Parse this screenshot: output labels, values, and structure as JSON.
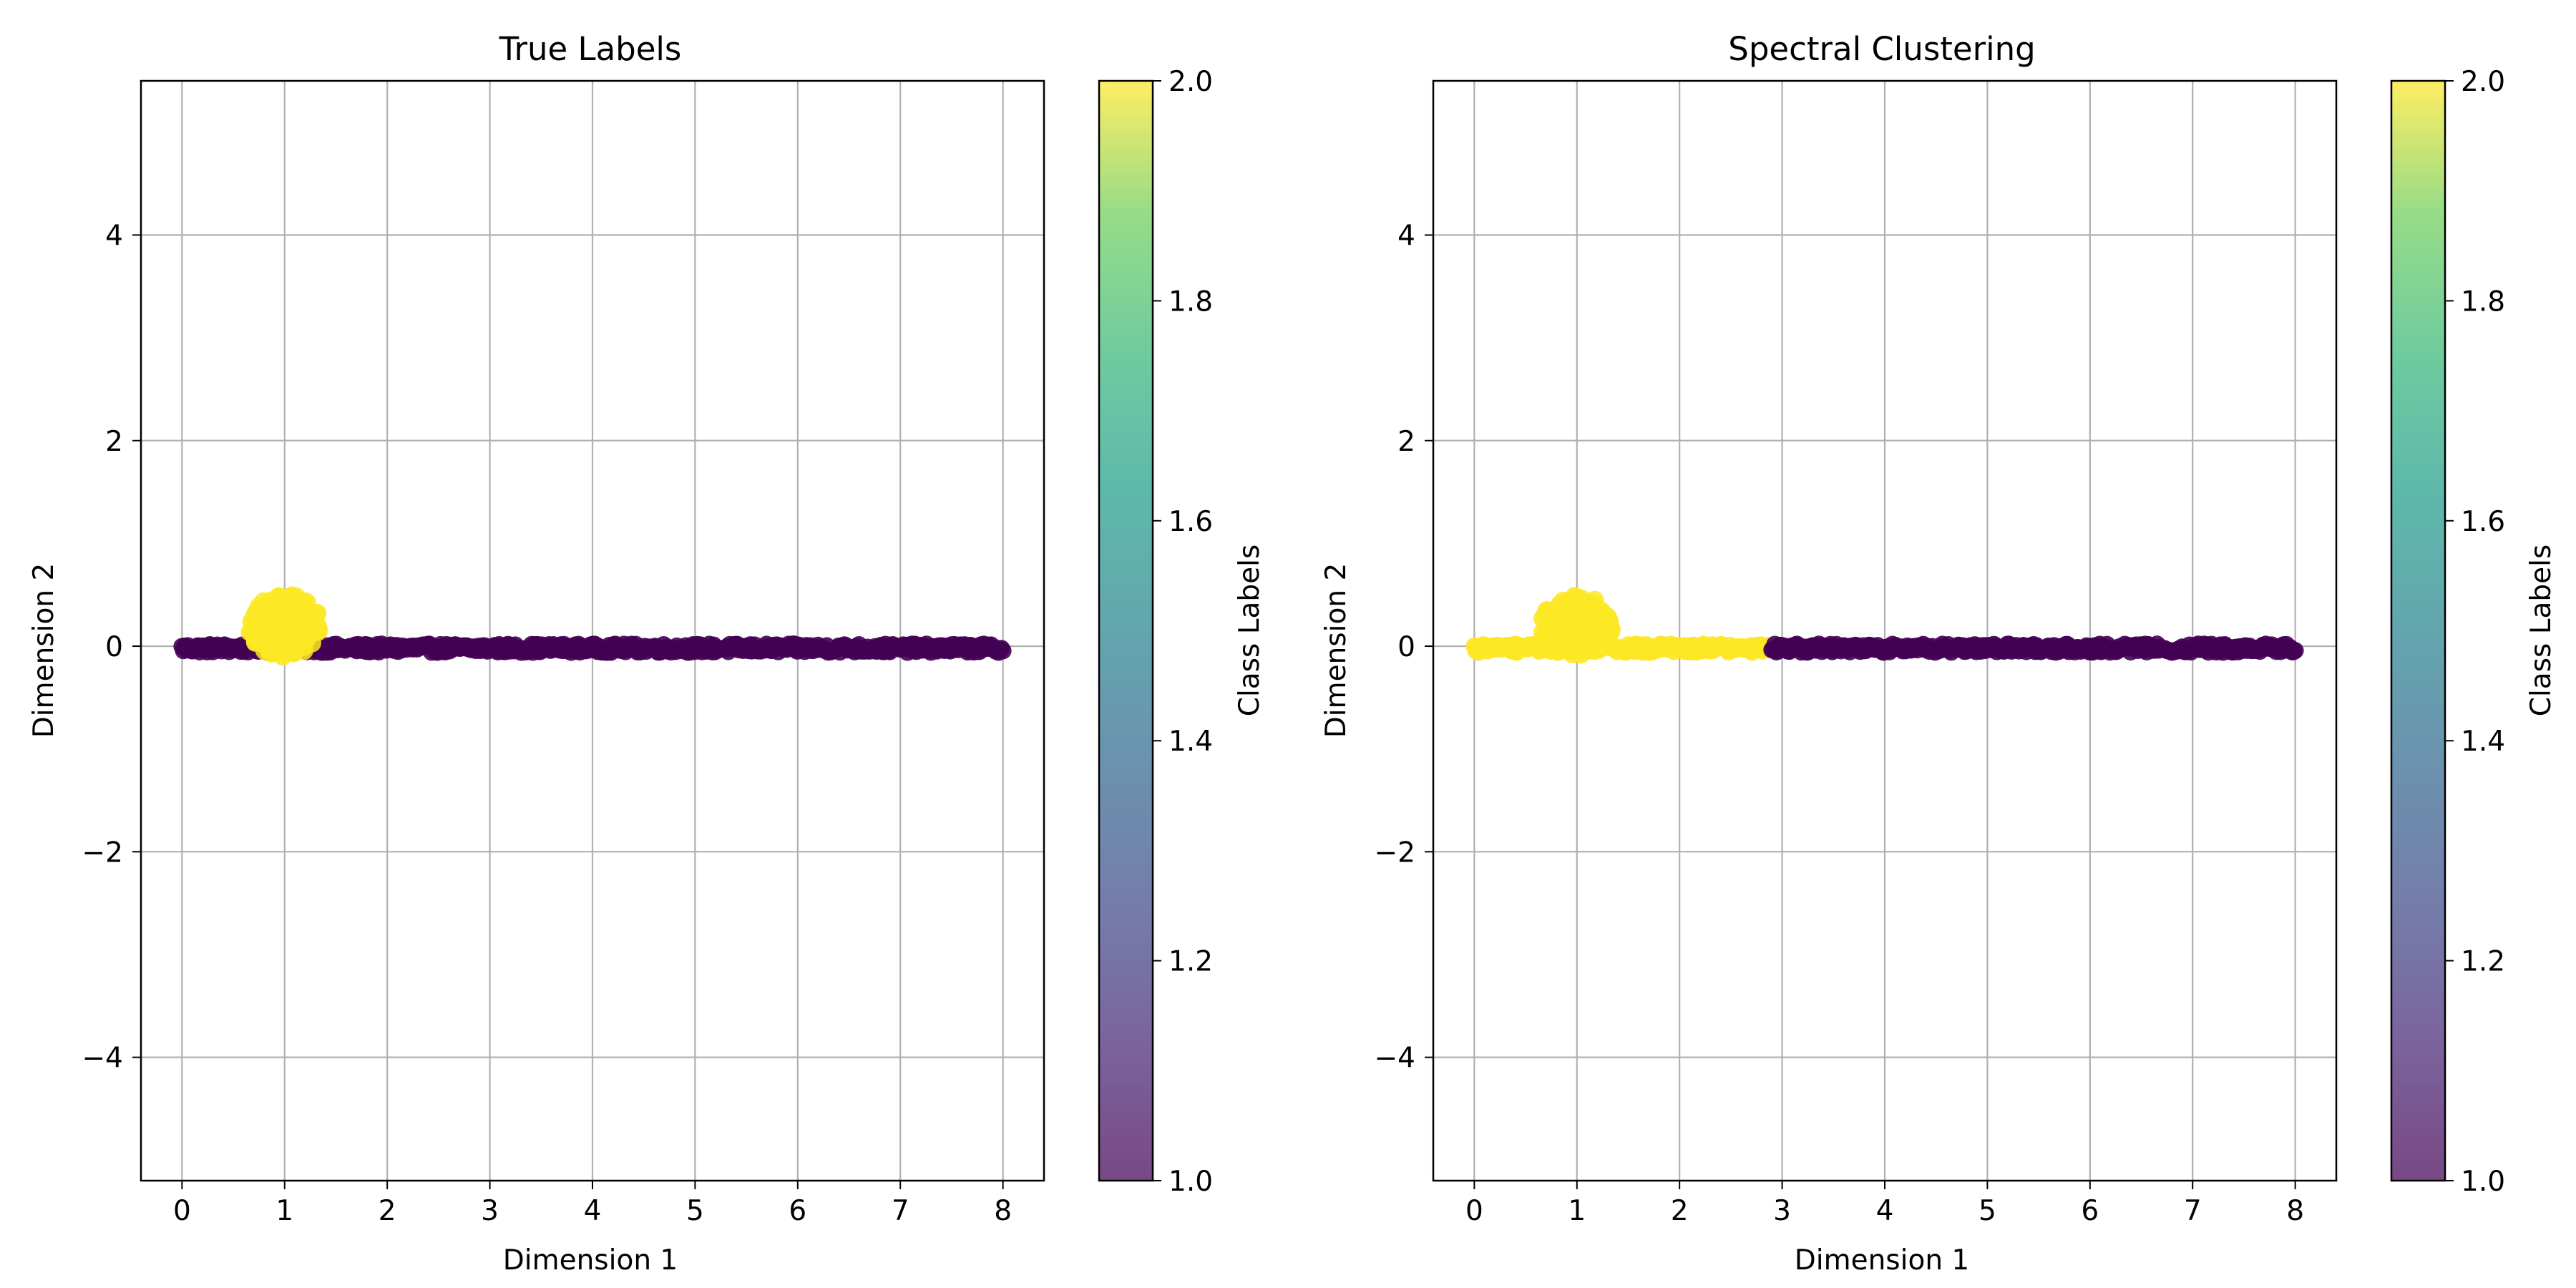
{
  "chart_data": [
    {
      "type": "scatter",
      "title": "True Labels",
      "xlabel": "Dimension 1",
      "ylabel": "Dimension 2",
      "xlim": [
        -0.4,
        8.4
      ],
      "ylim": [
        -5.2,
        5.5
      ],
      "xticks": [
        0,
        1,
        2,
        3,
        4,
        5,
        6,
        7,
        8
      ],
      "yticks": [
        -4,
        -2,
        0,
        2,
        4
      ],
      "xtick_labels": [
        "0",
        "1",
        "2",
        "3",
        "4",
        "5",
        "6",
        "7",
        "8"
      ],
      "ytick_labels": [
        "−4",
        "−2",
        "0",
        "2",
        "4"
      ],
      "grid": true,
      "point_groups": [
        {
          "label_value": 1,
          "shape": "line",
          "x_range": [
            0,
            8
          ],
          "y_center": -0.02,
          "y_spread": 0.04
        },
        {
          "label_value": 2,
          "shape": "blob",
          "x_center": 1.0,
          "y_center": 0.2,
          "radius_x": 0.35,
          "radius_y": 0.3
        }
      ],
      "colorbar": {
        "label": "Class Labels",
        "range": [
          1.0,
          2.0
        ],
        "ticks": [
          "1.0",
          "1.2",
          "1.4",
          "1.6",
          "1.8",
          "2.0"
        ],
        "colormap": "viridis"
      }
    },
    {
      "type": "scatter",
      "title": "Spectral Clustering",
      "xlabel": "Dimension 1",
      "ylabel": "Dimension 2",
      "xlim": [
        -0.4,
        8.4
      ],
      "ylim": [
        -5.2,
        5.5
      ],
      "xticks": [
        0,
        1,
        2,
        3,
        4,
        5,
        6,
        7,
        8
      ],
      "yticks": [
        -4,
        -2,
        0,
        2,
        4
      ],
      "xtick_labels": [
        "0",
        "1",
        "2",
        "3",
        "4",
        "5",
        "6",
        "7",
        "8"
      ],
      "ytick_labels": [
        "−4",
        "−2",
        "0",
        "2",
        "4"
      ],
      "grid": true,
      "point_groups": [
        {
          "label_value": 2,
          "shape": "line",
          "x_range": [
            0,
            2.85
          ],
          "y_center": -0.02,
          "y_spread": 0.04
        },
        {
          "label_value": 1,
          "shape": "line",
          "x_range": [
            2.9,
            8
          ],
          "y_center": -0.02,
          "y_spread": 0.04
        },
        {
          "label_value": 2,
          "shape": "blob",
          "x_center": 1.0,
          "y_center": 0.2,
          "radius_x": 0.35,
          "radius_y": 0.3
        }
      ],
      "colorbar": {
        "label": "Class Labels",
        "range": [
          1.0,
          2.0
        ],
        "ticks": [
          "1.0",
          "1.2",
          "1.4",
          "1.6",
          "1.8",
          "2.0"
        ],
        "colormap": "viridis"
      }
    }
  ],
  "colors": {
    "class_1": "#440154",
    "class_2": "#fde725",
    "grid": "#b0b0b0"
  }
}
